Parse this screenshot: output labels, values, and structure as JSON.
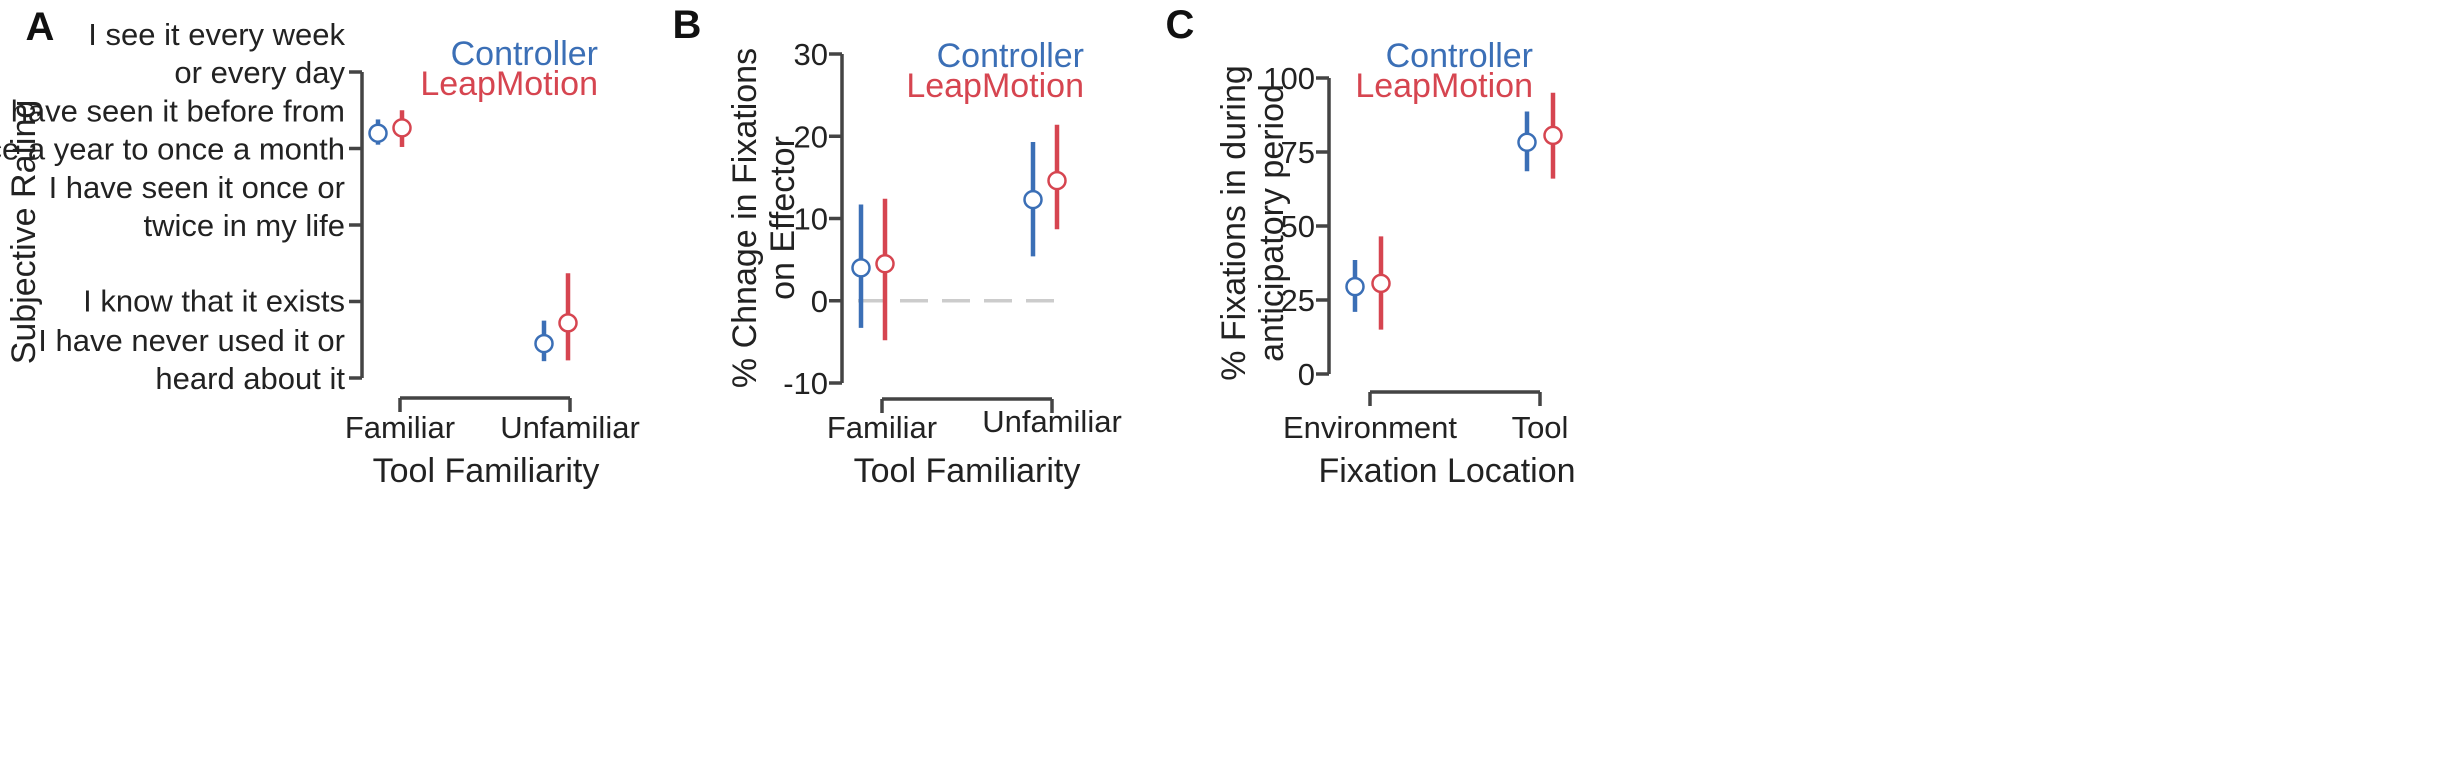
{
  "chart_data": [
    {
      "type": "scatter",
      "panel": "A",
      "ylabel": "Subjective Rating",
      "xlabel": "Tool Familiarity",
      "categories": [
        "Familiar",
        "Unfamiliar"
      ],
      "ylim": [
        1,
        5
      ],
      "ytick_values": [
        1,
        2,
        3,
        4,
        5
      ],
      "ytick_labels": [
        [
          "I have never used it or",
          "heard about it"
        ],
        [
          "I know that it exists"
        ],
        [
          "I have seen it once or",
          "twice in my life"
        ],
        [
          "I have seen it before from",
          "once a year to once a month"
        ],
        [
          "I see it every week",
          "or every day"
        ]
      ],
      "legend": "top-right",
      "series": [
        {
          "name": "Controller",
          "color": "#3b6fb6",
          "values": [
            4.2,
            1.45
          ],
          "low": [
            4.05,
            1.22
          ],
          "high": [
            4.38,
            1.75
          ]
        },
        {
          "name": "LeapMotion",
          "color": "#d64550",
          "values": [
            4.27,
            1.72
          ],
          "low": [
            4.02,
            1.23
          ],
          "high": [
            4.5,
            2.37
          ]
        }
      ]
    },
    {
      "type": "scatter",
      "panel": "B",
      "ylabel": [
        "% Chnage in Fixations",
        "on Effector"
      ],
      "xlabel": "Tool Familiarity",
      "categories": [
        "Familiar",
        "Unfamiliar"
      ],
      "ylim": [
        -10,
        30
      ],
      "yticks": [
        -10,
        0,
        10,
        20,
        30
      ],
      "zero_line": true,
      "legend": "top-right",
      "series": [
        {
          "name": "Controller",
          "color": "#3b6fb6",
          "values": [
            4.0,
            12.3
          ],
          "low": [
            -3.3,
            5.4
          ],
          "high": [
            11.7,
            19.3
          ]
        },
        {
          "name": "LeapMotion",
          "color": "#d64550",
          "values": [
            4.5,
            14.6
          ],
          "low": [
            -4.8,
            8.7
          ],
          "high": [
            12.4,
            21.4
          ]
        }
      ]
    },
    {
      "type": "scatter",
      "panel": "C",
      "ylabel": [
        "% Fixations in during",
        "anticipatory period"
      ],
      "xlabel": "Fixation Location",
      "categories": [
        "Environment",
        "Tool"
      ],
      "ylim": [
        0,
        100
      ],
      "yticks": [
        0,
        25,
        50,
        75,
        100
      ],
      "legend": "top-right",
      "series": [
        {
          "name": "Controller",
          "color": "#3b6fb6",
          "values": [
            29.5,
            78.3
          ],
          "low": [
            21.0,
            68.5
          ],
          "high": [
            38.5,
            88.7
          ]
        },
        {
          "name": "LeapMotion",
          "color": "#d64550",
          "values": [
            30.6,
            80.6
          ],
          "low": [
            15.0,
            66.0
          ],
          "high": [
            46.5,
            95.0
          ]
        }
      ]
    }
  ]
}
